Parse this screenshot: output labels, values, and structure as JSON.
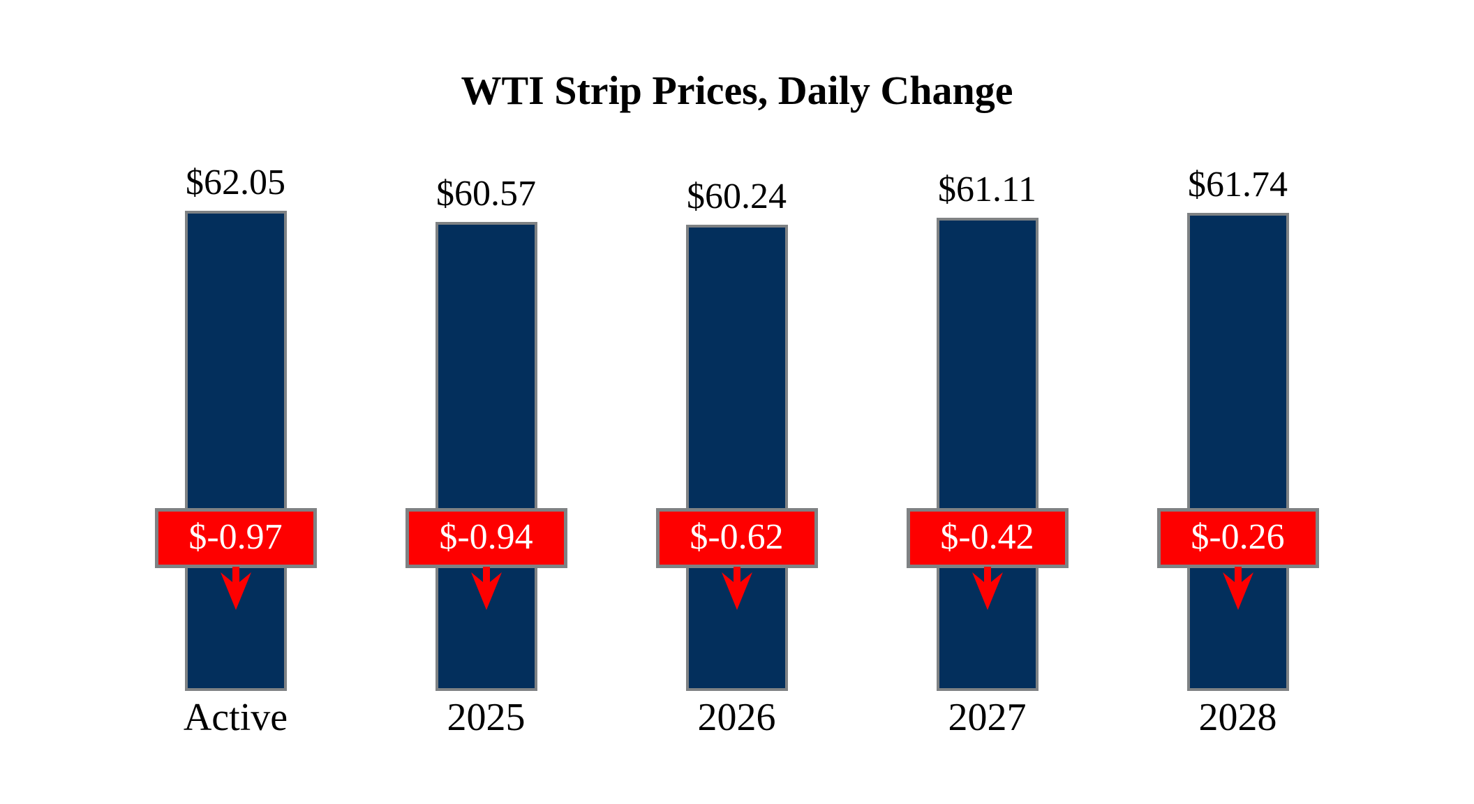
{
  "title": "WTI Strip Prices, Daily Change",
  "chart_data": {
    "type": "bar",
    "title": "WTI Strip Prices, Daily Change",
    "categories": [
      "Active",
      "2025",
      "2026",
      "2027",
      "2028"
    ],
    "series": [
      {
        "name": "strip_price",
        "values": [
          62.05,
          60.57,
          60.24,
          61.11,
          61.74
        ]
      },
      {
        "name": "daily_change",
        "values": [
          -0.97,
          -0.94,
          -0.62,
          -0.42,
          -0.26
        ]
      }
    ],
    "value_labels": [
      "$62.05",
      "$60.57",
      "$60.24",
      "$61.11",
      "$61.74"
    ],
    "change_labels": [
      "$-0.97",
      "$-0.94",
      "$-0.62",
      "$-0.42",
      "$-0.26"
    ],
    "ylim": [
      0,
      62.05
    ],
    "grid": false,
    "legend": "none",
    "xlabel": "",
    "ylabel": "",
    "colors": {
      "bar_fill": "#032f5c",
      "change_box_fill": "#fe0000",
      "border_gray": "#7f8284",
      "change_text": "#ffffff",
      "label_text": "#000000",
      "arrow": "#fe0000",
      "background": "#ffffff"
    }
  }
}
